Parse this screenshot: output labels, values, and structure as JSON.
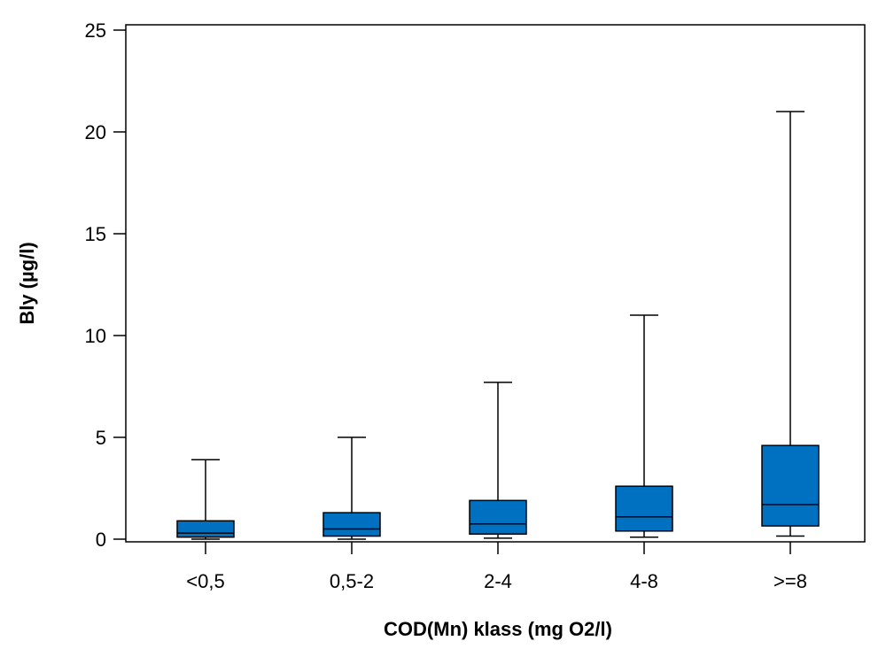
{
  "chart_data": {
    "type": "boxplot",
    "title": "",
    "xlabel": "COD(Mn) klass (mg O2/l)",
    "ylabel": "Bly (µg/l)",
    "ylim": [
      0,
      25
    ],
    "yticks": [
      0,
      5,
      10,
      15,
      20,
      25
    ],
    "grid": false,
    "legend": "none",
    "box_color": "#0070C0",
    "categories": [
      "<0,5",
      "0,5-2",
      "2-4",
      "4-8",
      ">=8"
    ],
    "boxes": [
      {
        "category": "<0,5",
        "min": 0.0,
        "q1": 0.1,
        "median": 0.3,
        "q3": 0.9,
        "max": 3.9
      },
      {
        "category": "0,5-2",
        "min": 0.0,
        "q1": 0.15,
        "median": 0.5,
        "q3": 1.3,
        "max": 5.0
      },
      {
        "category": "2-4",
        "min": 0.05,
        "q1": 0.25,
        "median": 0.75,
        "q3": 1.9,
        "max": 7.7
      },
      {
        "category": "4-8",
        "min": 0.1,
        "q1": 0.4,
        "median": 1.1,
        "q3": 2.6,
        "max": 11.0
      },
      {
        "category": ">=8",
        "min": 0.15,
        "q1": 0.65,
        "median": 1.7,
        "q3": 4.6,
        "max": 21.0
      }
    ]
  }
}
